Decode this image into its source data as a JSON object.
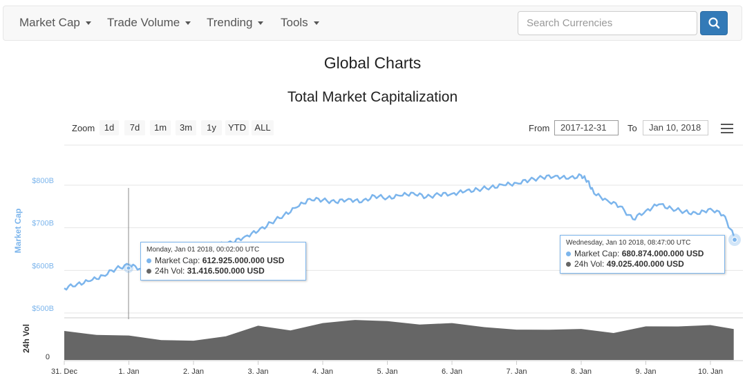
{
  "navbar": {
    "items": [
      {
        "label": "Market Cap"
      },
      {
        "label": "Trade Volume"
      },
      {
        "label": "Trending"
      },
      {
        "label": "Tools"
      }
    ],
    "search_placeholder": "Search Currencies"
  },
  "page_title": "Global Charts",
  "chart_title": "Total Market Capitalization",
  "zoom": {
    "label": "Zoom",
    "buttons": [
      "1d",
      "7d",
      "1m",
      "3m",
      "1y",
      "YTD",
      "ALL"
    ]
  },
  "range": {
    "from_label": "From",
    "from_value": "2017-12-31",
    "to_label": "To",
    "to_value": "Jan 10, 2018"
  },
  "colors": {
    "market_cap_line": "#7cb5ec",
    "volume_area": "#666666",
    "axis_label": "#7cb5ec"
  },
  "tooltips": [
    {
      "header": "Monday, Jan 01 2018, 00:02:00 UTC",
      "rows": [
        {
          "series": "Market Cap",
          "value": "612.925.000.000 USD",
          "color": "#7cb5ec"
        },
        {
          "series": "24h Vol",
          "value": "31.416.500.000 USD",
          "color": "#666666"
        }
      ]
    },
    {
      "header": "Wednesday, Jan 10 2018, 08:47:00 UTC",
      "rows": [
        {
          "series": "Market Cap",
          "value": "680.874.000.000 USD",
          "color": "#7cb5ec"
        },
        {
          "series": "24h Vol",
          "value": "49.025.400.000 USD",
          "color": "#666666"
        }
      ]
    }
  ],
  "chart_data": {
    "type": "line",
    "title": "Total Market Capitalization",
    "ylabel": "Market Cap",
    "y_ticks": [
      "$500B",
      "$600B",
      "$700B",
      "$800B"
    ],
    "ylim": [
      500,
      850
    ],
    "volume_label": "24h Vol",
    "volume_tick": "0",
    "x_ticks": [
      "31. Dec",
      "1. Jan",
      "2. Jan",
      "3. Jan",
      "4. Jan",
      "5. Jan",
      "6. Jan",
      "7. Jan",
      "8. Jan",
      "9. Jan",
      "10. Jan"
    ],
    "grid": true,
    "series": [
      {
        "name": "Market Cap",
        "x": [
          0,
          0.2,
          0.4,
          0.6,
          0.8,
          1.0,
          1.2,
          1.4,
          1.6,
          1.8,
          2.0,
          2.2,
          2.4,
          2.6,
          2.8,
          3.0,
          3.2,
          3.4,
          3.6,
          3.8,
          4.0,
          4.2,
          4.4,
          4.6,
          4.8,
          5.0,
          5.2,
          5.4,
          5.6,
          5.8,
          6.0,
          6.2,
          6.4,
          6.6,
          6.8,
          7.0,
          7.2,
          7.4,
          7.6,
          7.8,
          8.0,
          8.1,
          8.2,
          8.4,
          8.6,
          8.8,
          9.0,
          9.2,
          9.4,
          9.6,
          9.8,
          10.0,
          10.2,
          10.36
        ],
        "y": [
          558,
          568,
          575,
          588,
          604,
          613,
          603,
          602,
          615,
          618,
          618,
          640,
          660,
          665,
          680,
          692,
          712,
          730,
          748,
          768,
          765,
          760,
          768,
          760,
          775,
          770,
          775,
          782,
          772,
          778,
          780,
          785,
          790,
          795,
          800,
          805,
          812,
          818,
          822,
          815,
          823,
          810,
          780,
          765,
          750,
          720,
          740,
          755,
          745,
          738,
          732,
          745,
          730,
          681
        ]
      },
      {
        "name": "24h Vol",
        "x": [
          0,
          0.5,
          1.0,
          1.5,
          2.0,
          2.5,
          3.0,
          3.5,
          4.0,
          4.5,
          5.0,
          5.5,
          6.0,
          6.5,
          7.0,
          7.5,
          8.0,
          8.5,
          9.0,
          9.5,
          10.0,
          10.36
        ],
        "y": [
          43,
          40,
          36,
          32,
          28,
          38,
          51,
          47,
          55,
          63,
          58,
          56,
          55,
          52,
          45,
          48,
          46,
          43,
          50,
          53,
          52,
          49
        ]
      }
    ]
  }
}
